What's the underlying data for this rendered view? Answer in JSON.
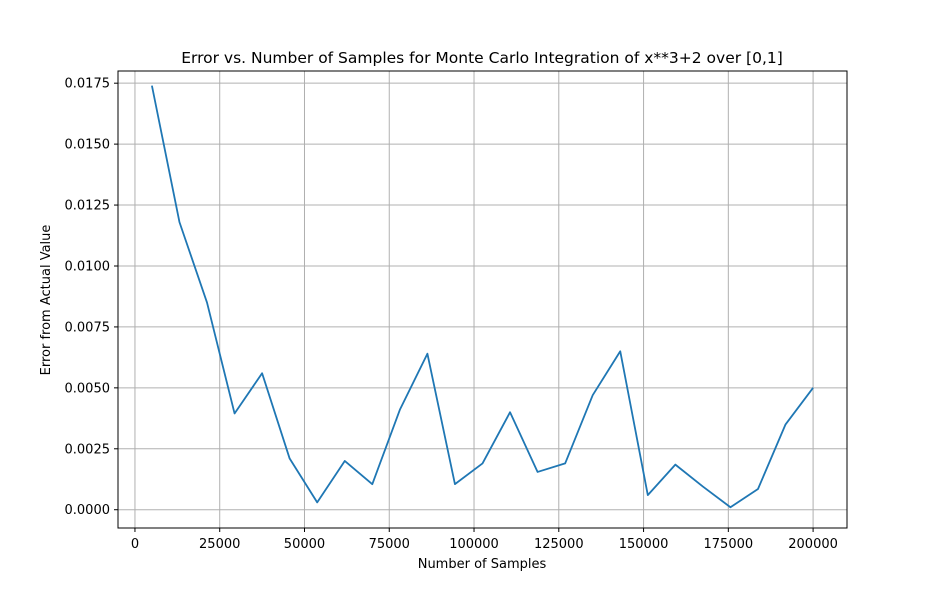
{
  "chart_data": {
    "type": "line",
    "title": "Error vs. Number of Samples for Monte Carlo Integration of x**3+2 over [0,1]",
    "xlabel": "Number of Samples",
    "ylabel": "Error from Actual Value",
    "xlim": [
      -5000,
      210000
    ],
    "ylim": [
      -0.00075,
      0.018
    ],
    "xticks": [
      0,
      25000,
      50000,
      75000,
      100000,
      125000,
      150000,
      175000,
      200000
    ],
    "xtick_labels": [
      "0",
      "25000",
      "50000",
      "75000",
      "100000",
      "125000",
      "150000",
      "175000",
      "200000"
    ],
    "yticks": [
      0.0,
      0.0025,
      0.005,
      0.0075,
      0.01,
      0.0125,
      0.015,
      0.0175
    ],
    "ytick_labels": [
      "0.0000",
      "0.0025",
      "0.0050",
      "0.0075",
      "0.0100",
      "0.0125",
      "0.0150",
      "0.0175"
    ],
    "grid": true,
    "line_color": "#1f77b4",
    "series": [
      {
        "x": [
          5000,
          13125,
          21250,
          29375,
          37500,
          45625,
          53750,
          61875,
          70000,
          78125,
          86250,
          94375,
          102500,
          110625,
          118750,
          126875,
          135000,
          143125,
          151250,
          159375,
          167500,
          175625,
          183750,
          191875,
          200000
        ],
        "y": [
          0.0174,
          0.0118,
          0.0085,
          0.00395,
          0.0056,
          0.0021,
          0.0003,
          0.002,
          0.00105,
          0.0041,
          0.0064,
          0.00105,
          0.0019,
          0.004,
          0.00155,
          0.0019,
          0.0047,
          0.0065,
          0.0006,
          0.00185,
          0.00095,
          0.0001,
          0.00085,
          0.0035,
          0.005
        ]
      }
    ]
  }
}
